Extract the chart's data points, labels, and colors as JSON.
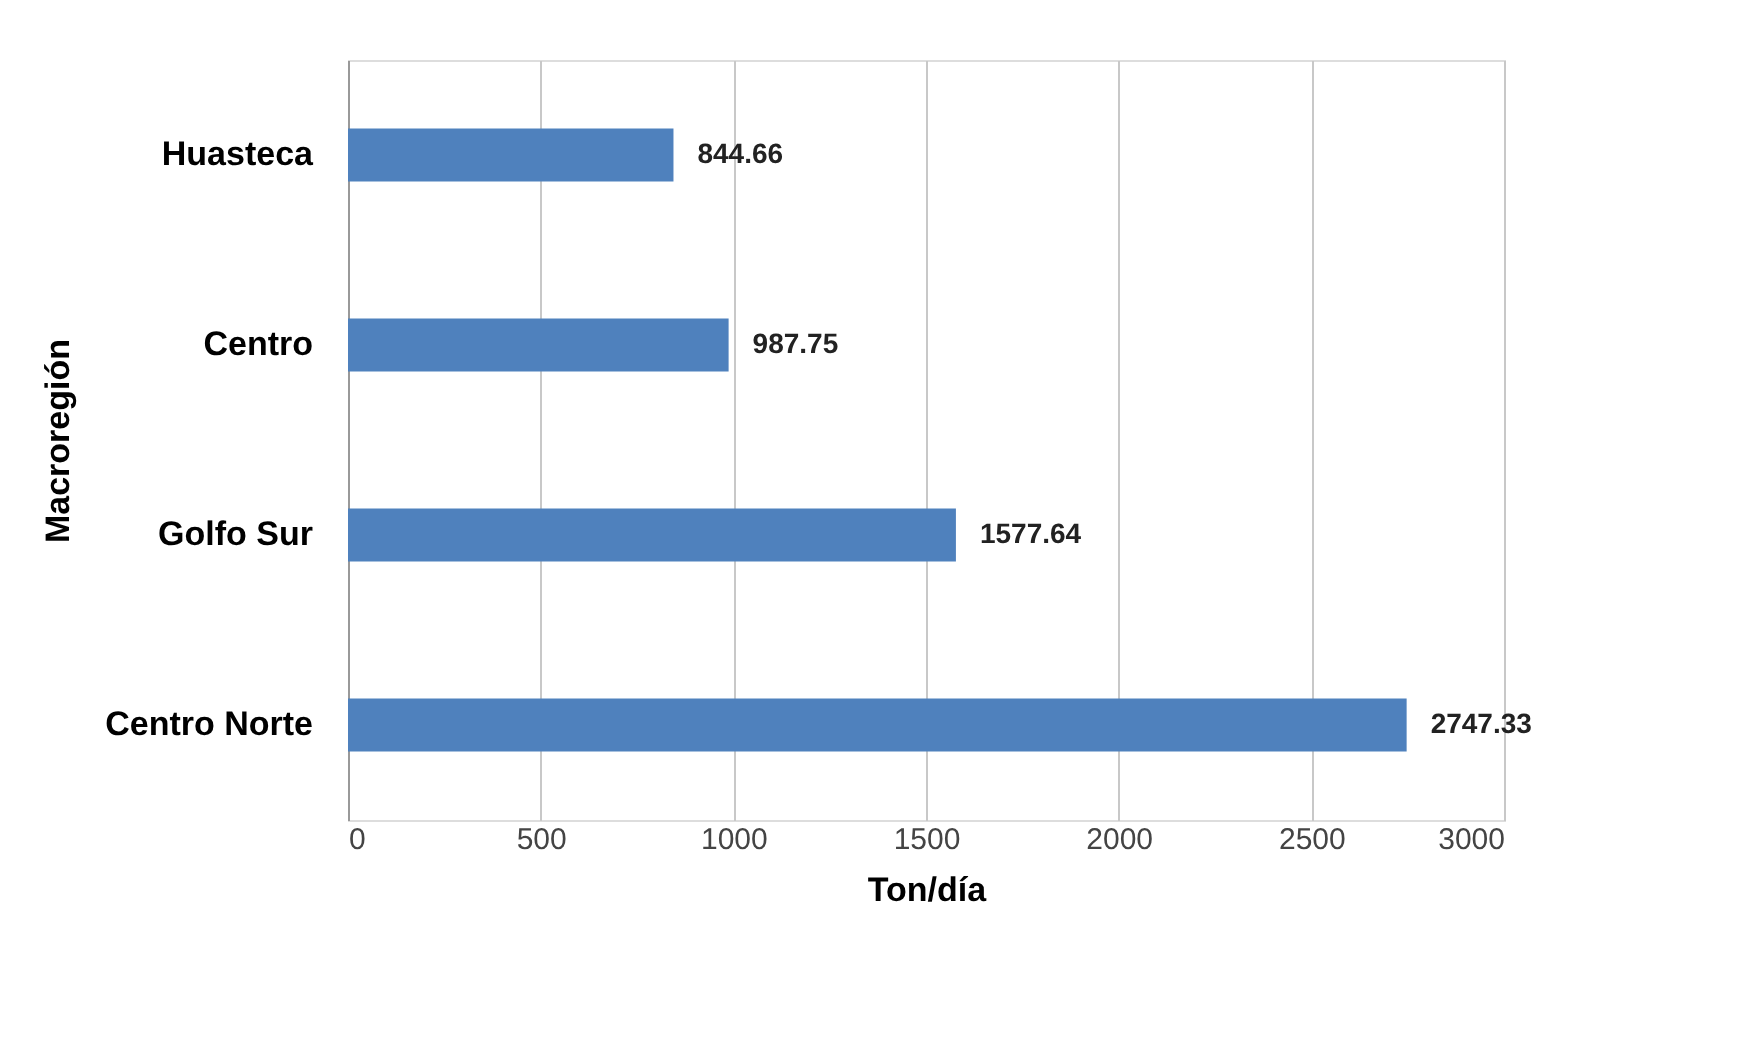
{
  "chart_data": {
    "type": "bar",
    "orientation": "horizontal",
    "xlabel": "Ton/día",
    "ylabel": "Macroregión",
    "categories": [
      "Huasteca",
      "Centro",
      "Golfo Sur",
      "Centro Norte"
    ],
    "values": [
      844.66,
      987.75,
      1577.64,
      2747.33
    ],
    "color": "#4f81bd",
    "xlim": [
      0,
      3000
    ],
    "xticks": [
      0,
      500,
      1000,
      1500,
      2000,
      2500,
      3000
    ],
    "grid": "x",
    "data_labels": true
  }
}
